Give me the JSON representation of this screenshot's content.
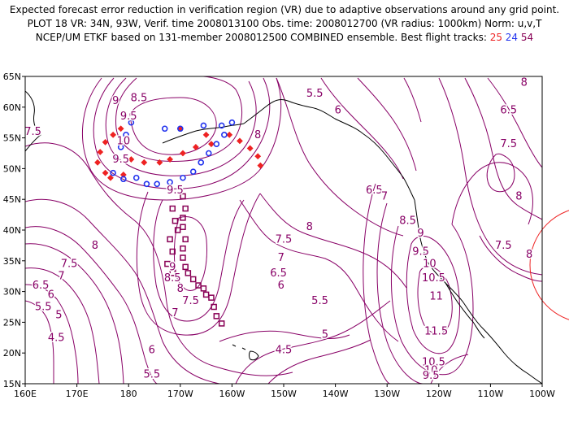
{
  "header": {
    "line1": "Expected forecast error reduction in verification region (VR) due to adaptive observations around any grid point.",
    "line2": "PLOT 18 VR: 34N, 93W, Verif. time 2008013100 Obs. time: 2008012700 (VR radius: 1000km) Norm: u,v,T",
    "line3_prefix": "NCEP/UM ETKF based on 131-member 2008012500 COMBINED ensemble.  Best flight tracks: ",
    "track_red": "25",
    "track_blue": "24",
    "track_purple": "54"
  },
  "colors": {
    "contour": "#880066",
    "track_red": "#ee2222",
    "track_blue": "#2233ee",
    "track_purple": "#880055",
    "vr_circle": "#ee2222",
    "coast": "#000000"
  },
  "axes": {
    "lon_labels": [
      "160E",
      "170E",
      "180",
      "170W",
      "160W",
      "150W",
      "140W",
      "130W",
      "120W",
      "110W",
      "100W"
    ],
    "lat_labels": [
      "15N",
      "20N",
      "25N",
      "30N",
      "35N",
      "40N",
      "45N",
      "50N",
      "55N",
      "60N",
      "65N"
    ]
  },
  "contour_labels": [
    {
      "text": "8.5",
      "lon": 182,
      "lat": 61.5
    },
    {
      "text": "9",
      "lon": 177.5,
      "lat": 61
    },
    {
      "text": "9.5",
      "lon": 180,
      "lat": 58.5
    },
    {
      "text": "10",
      "lon": 179,
      "lat": 54.5
    },
    {
      "text": "9.5",
      "lon": 178.5,
      "lat": 51.5
    },
    {
      "text": "9.5",
      "lon": 189,
      "lat": 46.5
    },
    {
      "text": "7.5",
      "lon": 161.5,
      "lat": 56
    },
    {
      "text": "8",
      "lon": 205,
      "lat": 55.5
    },
    {
      "text": "8",
      "lon": 215,
      "lat": 40.5
    },
    {
      "text": "7.5",
      "lon": 210,
      "lat": 38.5
    },
    {
      "text": "7",
      "lon": 209.5,
      "lat": 35.5
    },
    {
      "text": "6.5",
      "lon": 209,
      "lat": 33
    },
    {
      "text": "6",
      "lon": 209.5,
      "lat": 31
    },
    {
      "text": "5.5",
      "lon": 217,
      "lat": 28.5
    },
    {
      "text": "5",
      "lon": 218,
      "lat": 23
    },
    {
      "text": "4.5",
      "lon": 210,
      "lat": 20.5
    },
    {
      "text": "6",
      "lon": 184.5,
      "lat": 20.5
    },
    {
      "text": "5.5",
      "lon": 184.5,
      "lat": 16.5
    },
    {
      "text": "9",
      "lon": 188.5,
      "lat": 34
    },
    {
      "text": "8.5",
      "lon": 188.5,
      "lat": 32.2
    },
    {
      "text": "8",
      "lon": 190,
      "lat": 30.5
    },
    {
      "text": "7.5",
      "lon": 192,
      "lat": 28.5
    },
    {
      "text": "7",
      "lon": 189,
      "lat": 26.5
    },
    {
      "text": "8",
      "lon": 173.5,
      "lat": 37.5
    },
    {
      "text": "7.5",
      "lon": 168.5,
      "lat": 34.5
    },
    {
      "text": "7",
      "lon": 167,
      "lat": 32.5
    },
    {
      "text": "6.5",
      "lon": 163,
      "lat": 31
    },
    {
      "text": "6",
      "lon": 165,
      "lat": 29.5
    },
    {
      "text": "5.5",
      "lon": 163.5,
      "lat": 27.5
    },
    {
      "text": "5",
      "lon": 166.5,
      "lat": 26.2
    },
    {
      "text": "4.5",
      "lon": 166,
      "lat": 22.5
    },
    {
      "text": "5.5",
      "lon": 216,
      "lat": 62.2
    },
    {
      "text": "6",
      "lon": 220.5,
      "lat": 59.5
    },
    {
      "text": "6.5",
      "lon": 227.5,
      "lat": 46.5
    },
    {
      "text": "7",
      "lon": 229.5,
      "lat": 45.5
    },
    {
      "text": "8.5",
      "lon": 234,
      "lat": 41.5
    },
    {
      "text": "9",
      "lon": 236.5,
      "lat": 39.5
    },
    {
      "text": "9.5",
      "lon": 236.5,
      "lat": 36.5
    },
    {
      "text": "10",
      "lon": 238.2,
      "lat": 34.5
    },
    {
      "text": "10.5",
      "lon": 239,
      "lat": 32.2
    },
    {
      "text": "11",
      "lon": 239.5,
      "lat": 29.2
    },
    {
      "text": "11.5",
      "lon": 239.5,
      "lat": 23.5
    },
    {
      "text": "10.5",
      "lon": 239,
      "lat": 18.5
    },
    {
      "text": "10",
      "lon": 238.5,
      "lat": 17.2
    },
    {
      "text": "9.5",
      "lon": 238.5,
      "lat": 16.3
    },
    {
      "text": "6.5",
      "lon": 253.5,
      "lat": 59.5
    },
    {
      "text": "7.5",
      "lon": 253.5,
      "lat": 54
    },
    {
      "text": "8",
      "lon": 255.5,
      "lat": 45.5
    },
    {
      "text": "7.5",
      "lon": 252.5,
      "lat": 37.5
    },
    {
      "text": "8",
      "lon": 257.5,
      "lat": 36
    },
    {
      "text": "8",
      "lon": 256.5,
      "lat": 64
    }
  ],
  "tracks": {
    "red": [
      [
        178.5,
        56.5
      ],
      [
        177,
        55.5
      ],
      [
        175.5,
        54.3
      ],
      [
        174.5,
        52.7
      ],
      [
        174,
        51
      ],
      [
        175.5,
        49.3
      ],
      [
        176.5,
        48.5
      ],
      [
        179,
        49
      ],
      [
        180.5,
        51.5
      ],
      [
        183,
        51
      ],
      [
        186,
        51
      ],
      [
        188,
        51.5
      ],
      [
        190.5,
        52.5
      ],
      [
        193,
        53.5
      ],
      [
        196,
        54
      ],
      [
        199.5,
        55.5
      ],
      [
        201.5,
        54.5
      ],
      [
        203.5,
        53.3
      ],
      [
        205,
        52
      ],
      [
        205.5,
        50.5
      ],
      [
        195,
        55.5
      ],
      [
        190,
        56.5
      ]
    ],
    "blue": [
      [
        180.5,
        57.5
      ],
      [
        179.5,
        55.5
      ],
      [
        178.5,
        53.5
      ],
      [
        177.5,
        51.5
      ],
      [
        177,
        49.3
      ],
      [
        179,
        48.3
      ],
      [
        181.5,
        48.5
      ],
      [
        183.5,
        47.5
      ],
      [
        185.5,
        47.5
      ],
      [
        188,
        47.8
      ],
      [
        190.5,
        48.5
      ],
      [
        192.5,
        49.5
      ],
      [
        194,
        51
      ],
      [
        195.5,
        52.5
      ],
      [
        197,
        54
      ],
      [
        198.5,
        55.5
      ],
      [
        200,
        57.5
      ],
      [
        198,
        57
      ],
      [
        194.5,
        57
      ],
      [
        190,
        56.5
      ],
      [
        187,
        56.5
      ]
    ],
    "purple": [
      [
        190.5,
        45.5
      ],
      [
        191,
        43.5
      ],
      [
        190.5,
        42
      ],
      [
        190.5,
        40.5
      ],
      [
        191,
        38.5
      ],
      [
        190.5,
        37
      ],
      [
        190.5,
        35.5
      ],
      [
        191,
        34
      ],
      [
        191.5,
        33
      ],
      [
        192.5,
        32
      ],
      [
        193.5,
        31
      ],
      [
        194.5,
        30.5
      ],
      [
        195,
        29.5
      ],
      [
        196,
        29
      ],
      [
        196.5,
        27.5
      ],
      [
        197,
        26
      ],
      [
        198,
        24.8
      ],
      [
        188.5,
        43.5
      ],
      [
        189,
        41.5
      ],
      [
        189.5,
        40
      ],
      [
        188,
        38.5
      ],
      [
        188.5,
        36.5
      ],
      [
        187.5,
        34.5
      ],
      [
        188.5,
        33
      ]
    ]
  }
}
